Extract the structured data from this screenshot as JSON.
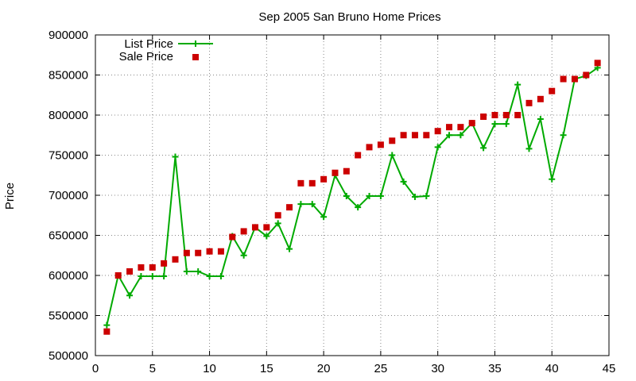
{
  "chart_data": {
    "type": "line",
    "title": "Sep 2005 San Bruno Home Prices",
    "xlabel": "",
    "ylabel": "Price",
    "xlim": [
      0,
      45
    ],
    "ylim": [
      500000,
      900000
    ],
    "xticks": [
      0,
      5,
      10,
      15,
      20,
      25,
      30,
      35,
      40,
      45
    ],
    "yticks": [
      500000,
      550000,
      600000,
      650000,
      700000,
      750000,
      800000,
      850000,
      900000
    ],
    "grid": true,
    "legend_position": "top-left",
    "series": [
      {
        "name": "List Price",
        "style": "linespoints",
        "marker": "plus",
        "color": "#00aa00",
        "x": [
          1,
          2,
          3,
          4,
          5,
          6,
          7,
          8,
          9,
          10,
          11,
          12,
          13,
          14,
          15,
          16,
          17,
          18,
          19,
          20,
          21,
          22,
          23,
          24,
          25,
          26,
          27,
          28,
          29,
          30,
          31,
          32,
          33,
          34,
          35,
          36,
          37,
          38,
          39,
          40,
          41,
          42,
          43,
          44
        ],
        "y": [
          538000,
          600000,
          575000,
          599000,
          599000,
          599000,
          748000,
          605000,
          605000,
          599000,
          599000,
          649000,
          625000,
          660000,
          649000,
          665000,
          633000,
          689000,
          689000,
          673000,
          725000,
          699000,
          685000,
          699000,
          699000,
          750000,
          717000,
          698000,
          699000,
          760000,
          775000,
          775000,
          790000,
          759000,
          789000,
          789000,
          838000,
          758000,
          795000,
          720000,
          775000,
          845000,
          849000,
          859000
        ]
      },
      {
        "name": "Sale Price",
        "style": "points",
        "marker": "square",
        "color": "#cc0000",
        "x": [
          1,
          2,
          3,
          4,
          5,
          6,
          7,
          8,
          9,
          10,
          11,
          12,
          13,
          14,
          15,
          16,
          17,
          18,
          19,
          20,
          21,
          22,
          23,
          24,
          25,
          26,
          27,
          28,
          29,
          30,
          31,
          32,
          33,
          34,
          35,
          36,
          37,
          38,
          39,
          40,
          41,
          42,
          43,
          44
        ],
        "y": [
          530000,
          600000,
          605000,
          610000,
          610000,
          615000,
          620000,
          628000,
          628000,
          630000,
          630000,
          648000,
          655000,
          660000,
          660000,
          675000,
          685000,
          715000,
          715000,
          720000,
          728000,
          730000,
          750000,
          760000,
          763000,
          768000,
          775000,
          775000,
          775000,
          780000,
          785000,
          785000,
          790000,
          798000,
          800000,
          800000,
          800000,
          815000,
          820000,
          830000,
          845000,
          845000,
          850000,
          865000
        ]
      }
    ]
  }
}
